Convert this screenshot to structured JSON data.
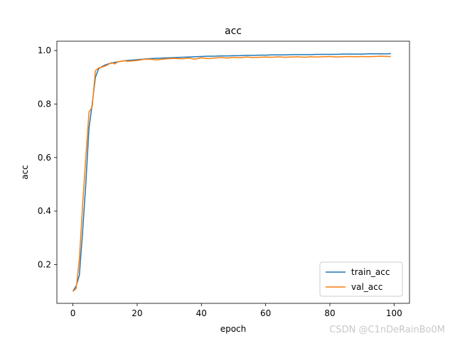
{
  "chart_data": {
    "type": "line",
    "title": "acc",
    "xlabel": "epoch",
    "ylabel": "acc",
    "xlim": [
      -5,
      104.8
    ],
    "ylim": [
      0.055,
      1.035
    ],
    "xticks": [
      0,
      20,
      40,
      60,
      80,
      100
    ],
    "xtick_labels": [
      "0",
      "20",
      "40",
      "60",
      "80",
      "100"
    ],
    "yticks": [
      0.2,
      0.4,
      0.6,
      0.8,
      1.0
    ],
    "ytick_labels": [
      "0.2",
      "0.4",
      "0.6",
      "0.8",
      "1.0"
    ],
    "grid": false,
    "legend_position": "lower right",
    "series": [
      {
        "name": "train_acc",
        "color": "#1f77b4",
        "x": [
          0,
          1,
          2,
          3,
          4,
          5,
          6,
          7,
          8,
          9,
          10,
          11,
          12,
          13,
          14,
          15,
          16,
          17,
          18,
          19,
          20,
          22,
          24,
          26,
          28,
          30,
          32,
          34,
          36,
          38,
          40,
          42,
          44,
          46,
          48,
          50,
          52,
          54,
          56,
          58,
          60,
          62,
          64,
          66,
          68,
          70,
          72,
          74,
          76,
          78,
          80,
          82,
          84,
          86,
          88,
          90,
          92,
          94,
          96,
          98,
          99
        ],
        "y": [
          0.1,
          0.12,
          0.16,
          0.32,
          0.5,
          0.71,
          0.8,
          0.9,
          0.932,
          0.94,
          0.946,
          0.95,
          0.953,
          0.956,
          0.958,
          0.96,
          0.962,
          0.963,
          0.964,
          0.965,
          0.966,
          0.968,
          0.97,
          0.971,
          0.972,
          0.973,
          0.974,
          0.975,
          0.976,
          0.977,
          0.978,
          0.979,
          0.979,
          0.98,
          0.98,
          0.981,
          0.981,
          0.982,
          0.982,
          0.983,
          0.983,
          0.984,
          0.984,
          0.984,
          0.985,
          0.985,
          0.985,
          0.985,
          0.986,
          0.986,
          0.986,
          0.986,
          0.987,
          0.987,
          0.987,
          0.987,
          0.988,
          0.988,
          0.988,
          0.988,
          0.989
        ]
      },
      {
        "name": "val_acc",
        "color": "#ff7f0e",
        "x": [
          0,
          1,
          2,
          3,
          4,
          5,
          6,
          7,
          8,
          9,
          10,
          11,
          12,
          13,
          14,
          15,
          16,
          17,
          18,
          19,
          20,
          22,
          24,
          26,
          28,
          30,
          32,
          34,
          36,
          38,
          40,
          42,
          44,
          46,
          48,
          50,
          52,
          54,
          56,
          58,
          60,
          62,
          64,
          66,
          68,
          70,
          72,
          74,
          76,
          78,
          80,
          82,
          84,
          86,
          88,
          90,
          92,
          94,
          96,
          98,
          99
        ],
        "y": [
          0.1,
          0.11,
          0.22,
          0.42,
          0.6,
          0.77,
          0.79,
          0.925,
          0.935,
          0.938,
          0.942,
          0.948,
          0.955,
          0.95,
          0.958,
          0.96,
          0.962,
          0.96,
          0.961,
          0.962,
          0.963,
          0.967,
          0.968,
          0.965,
          0.968,
          0.97,
          0.971,
          0.969,
          0.972,
          0.968,
          0.973,
          0.97,
          0.972,
          0.974,
          0.972,
          0.975,
          0.973,
          0.976,
          0.974,
          0.975,
          0.976,
          0.975,
          0.977,
          0.975,
          0.976,
          0.977,
          0.975,
          0.977,
          0.976,
          0.977,
          0.978,
          0.976,
          0.977,
          0.978,
          0.977,
          0.978,
          0.977,
          0.978,
          0.979,
          0.978,
          0.978
        ]
      }
    ]
  },
  "watermark": "CSDN @C1nDeRainBo0M"
}
